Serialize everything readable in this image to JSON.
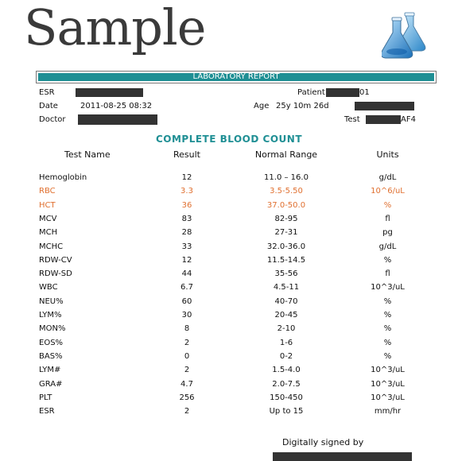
{
  "watermark": "Sample",
  "banner_title": "LABORATORY REPORT",
  "info": {
    "patient_label": "Patient",
    "patient_suffix": "01",
    "date_label": "Date",
    "date_value": "2011-08-25 08:32",
    "age_label": "Age",
    "age_value": "25y 10m 26d",
    "doctor_label": "Doctor",
    "test_label": "Test",
    "test_suffix": "AF4"
  },
  "section_title": "COMPLETE BLOOD COUNT",
  "columns": {
    "name": "Test Name",
    "result": "Result",
    "range": "Normal Range",
    "units": "Units"
  },
  "rows": [
    {
      "name": "Hemoglobin",
      "result": "12",
      "range": "11.0 – 16.0",
      "units": "g/dL",
      "abnormal": false
    },
    {
      "name": "RBC",
      "result": "3.3",
      "range": "3.5-5.50",
      "units": "10^6/uL",
      "abnormal": true
    },
    {
      "name": "HCT",
      "result": "36",
      "range": "37.0-50.0",
      "units": "%",
      "abnormal": true
    },
    {
      "name": "MCV",
      "result": "83",
      "range": "82-95",
      "units": "fl",
      "abnormal": false
    },
    {
      "name": "MCH",
      "result": "28",
      "range": "27-31",
      "units": "pg",
      "abnormal": false
    },
    {
      "name": "MCHC",
      "result": "33",
      "range": "32.0-36.0",
      "units": "g/dL",
      "abnormal": false
    },
    {
      "name": "RDW-CV",
      "result": "12",
      "range": "11.5-14.5",
      "units": "%",
      "abnormal": false
    },
    {
      "name": "RDW-SD",
      "result": "44",
      "range": "35-56",
      "units": "fl",
      "abnormal": false
    },
    {
      "name": "WBC",
      "result": "6.7",
      "range": "4.5-11",
      "units": "10^3/uL",
      "abnormal": false
    },
    {
      "name": "NEU%",
      "result": "60",
      "range": "40-70",
      "units": "%",
      "abnormal": false
    },
    {
      "name": "LYM%",
      "result": "30",
      "range": "20-45",
      "units": "%",
      "abnormal": false
    },
    {
      "name": "MON%",
      "result": "8",
      "range": "2-10",
      "units": "%",
      "abnormal": false
    },
    {
      "name": "EOS%",
      "result": "2",
      "range": "1-6",
      "units": "%",
      "abnormal": false
    },
    {
      "name": "BAS%",
      "result": "0",
      "range": "0-2",
      "units": "%",
      "abnormal": false
    },
    {
      "name": "LYM#",
      "result": "2",
      "range": "1.5-4.0",
      "units": "10^3/uL",
      "abnormal": false
    },
    {
      "name": "GRA#",
      "result": "4.7",
      "range": "2.0-7.5",
      "units": "10^3/uL",
      "abnormal": false
    },
    {
      "name": "PLT",
      "result": "256",
      "range": "150-450",
      "units": "10^3/uL",
      "abnormal": false
    },
    {
      "name": "ESR",
      "result": "2",
      "range": "Up to 15",
      "units": "mm/hr",
      "abnormal": false
    }
  ],
  "signature_label": "Digitally signed by",
  "colors": {
    "teal": "#1f8f94",
    "abnormal": "#e07030",
    "redaction": "#333333"
  },
  "icons": [
    "flask-icon"
  ]
}
